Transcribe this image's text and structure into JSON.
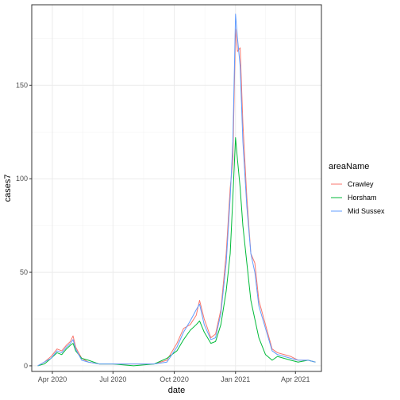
{
  "chart_data": {
    "type": "line",
    "xlabel": "date",
    "ylabel": "cases7",
    "x_range": [
      "2020-03-01",
      "2021-05-10"
    ],
    "y_range": [
      -3,
      193
    ],
    "x_ticks": [
      {
        "date": "2020-04-01",
        "label": "Apr 2020"
      },
      {
        "date": "2020-07-01",
        "label": "Jul 2020"
      },
      {
        "date": "2020-10-01",
        "label": "Oct 2020"
      },
      {
        "date": "2021-01-01",
        "label": "Jan 2021"
      },
      {
        "date": "2021-04-01",
        "label": "Apr 2021"
      }
    ],
    "y_ticks": [
      0,
      50,
      100,
      150
    ],
    "grid": true,
    "legend": {
      "title": "areaName",
      "placement": "right",
      "entries": [
        "Crawley",
        "Horsham",
        "Mid Sussex"
      ]
    },
    "series": [
      {
        "name": "Crawley",
        "color": "#F8766D",
        "points": [
          [
            "2020-03-10",
            0
          ],
          [
            "2020-03-20",
            2
          ],
          [
            "2020-03-30",
            5
          ],
          [
            "2020-04-08",
            9
          ],
          [
            "2020-04-15",
            8
          ],
          [
            "2020-04-22",
            11
          ],
          [
            "2020-04-28",
            13
          ],
          [
            "2020-05-02",
            16
          ],
          [
            "2020-05-06",
            10
          ],
          [
            "2020-05-15",
            4
          ],
          [
            "2020-05-25",
            2
          ],
          [
            "2020-06-10",
            1
          ],
          [
            "2020-07-01",
            1
          ],
          [
            "2020-08-01",
            1
          ],
          [
            "2020-09-01",
            1
          ],
          [
            "2020-09-20",
            3
          ],
          [
            "2020-10-05",
            12
          ],
          [
            "2020-10-15",
            20
          ],
          [
            "2020-10-25",
            22
          ],
          [
            "2020-11-03",
            27
          ],
          [
            "2020-11-08",
            35
          ],
          [
            "2020-11-15",
            25
          ],
          [
            "2020-11-25",
            15
          ],
          [
            "2020-12-02",
            17
          ],
          [
            "2020-12-10",
            30
          ],
          [
            "2020-12-18",
            60
          ],
          [
            "2020-12-24",
            95
          ],
          [
            "2020-12-28",
            110
          ],
          [
            "2021-01-01",
            180
          ],
          [
            "2021-01-04",
            168
          ],
          [
            "2021-01-08",
            170
          ],
          [
            "2021-01-12",
            130
          ],
          [
            "2021-01-18",
            90
          ],
          [
            "2021-01-24",
            60
          ],
          [
            "2021-01-30",
            55
          ],
          [
            "2021-02-05",
            35
          ],
          [
            "2021-02-15",
            22
          ],
          [
            "2021-02-25",
            9
          ],
          [
            "2021-03-05",
            7
          ],
          [
            "2021-03-15",
            6
          ],
          [
            "2021-03-25",
            5
          ],
          [
            "2021-04-05",
            3
          ],
          [
            "2021-04-20",
            3
          ],
          [
            "2021-05-01",
            2
          ]
        ]
      },
      {
        "name": "Horsham",
        "color": "#00BA38",
        "points": [
          [
            "2020-03-10",
            0
          ],
          [
            "2020-03-20",
            1
          ],
          [
            "2020-03-30",
            4
          ],
          [
            "2020-04-08",
            7
          ],
          [
            "2020-04-15",
            6
          ],
          [
            "2020-04-22",
            9
          ],
          [
            "2020-04-28",
            11
          ],
          [
            "2020-05-02",
            12
          ],
          [
            "2020-05-06",
            8
          ],
          [
            "2020-05-15",
            4
          ],
          [
            "2020-05-25",
            3
          ],
          [
            "2020-06-10",
            1
          ],
          [
            "2020-07-01",
            1
          ],
          [
            "2020-08-01",
            0
          ],
          [
            "2020-09-01",
            1
          ],
          [
            "2020-09-20",
            4
          ],
          [
            "2020-10-05",
            8
          ],
          [
            "2020-10-15",
            14
          ],
          [
            "2020-10-25",
            19
          ],
          [
            "2020-11-03",
            22
          ],
          [
            "2020-11-08",
            24
          ],
          [
            "2020-11-15",
            18
          ],
          [
            "2020-11-25",
            12
          ],
          [
            "2020-12-02",
            13
          ],
          [
            "2020-12-10",
            22
          ],
          [
            "2020-12-18",
            40
          ],
          [
            "2020-12-24",
            60
          ],
          [
            "2020-12-28",
            90
          ],
          [
            "2021-01-01",
            122
          ],
          [
            "2021-01-04",
            110
          ],
          [
            "2021-01-08",
            95
          ],
          [
            "2021-01-12",
            75
          ],
          [
            "2021-01-18",
            55
          ],
          [
            "2021-01-24",
            35
          ],
          [
            "2021-01-30",
            25
          ],
          [
            "2021-02-05",
            15
          ],
          [
            "2021-02-15",
            6
          ],
          [
            "2021-02-25",
            3
          ],
          [
            "2021-03-05",
            5
          ],
          [
            "2021-03-15",
            4
          ],
          [
            "2021-03-25",
            3
          ],
          [
            "2021-04-05",
            2
          ],
          [
            "2021-04-20",
            3
          ],
          [
            "2021-05-01",
            2
          ]
        ]
      },
      {
        "name": "Mid Sussex",
        "color": "#619CFF",
        "points": [
          [
            "2020-03-10",
            0
          ],
          [
            "2020-03-20",
            2
          ],
          [
            "2020-03-30",
            4
          ],
          [
            "2020-04-08",
            8
          ],
          [
            "2020-04-15",
            7
          ],
          [
            "2020-04-22",
            10
          ],
          [
            "2020-04-28",
            12
          ],
          [
            "2020-05-02",
            14
          ],
          [
            "2020-05-06",
            9
          ],
          [
            "2020-05-15",
            3
          ],
          [
            "2020-05-25",
            2
          ],
          [
            "2020-06-10",
            1
          ],
          [
            "2020-07-01",
            1
          ],
          [
            "2020-08-01",
            1
          ],
          [
            "2020-09-01",
            1
          ],
          [
            "2020-09-20",
            2
          ],
          [
            "2020-10-05",
            10
          ],
          [
            "2020-10-15",
            18
          ],
          [
            "2020-10-25",
            24
          ],
          [
            "2020-11-03",
            30
          ],
          [
            "2020-11-08",
            33
          ],
          [
            "2020-11-15",
            22
          ],
          [
            "2020-11-25",
            14
          ],
          [
            "2020-12-02",
            15
          ],
          [
            "2020-12-10",
            28
          ],
          [
            "2020-12-18",
            55
          ],
          [
            "2020-12-24",
            90
          ],
          [
            "2020-12-28",
            120
          ],
          [
            "2021-01-01",
            188
          ],
          [
            "2021-01-04",
            175
          ],
          [
            "2021-01-08",
            160
          ],
          [
            "2021-01-12",
            120
          ],
          [
            "2021-01-18",
            85
          ],
          [
            "2021-01-24",
            60
          ],
          [
            "2021-01-30",
            50
          ],
          [
            "2021-02-05",
            32
          ],
          [
            "2021-02-15",
            20
          ],
          [
            "2021-02-25",
            8
          ],
          [
            "2021-03-05",
            6
          ],
          [
            "2021-03-15",
            5
          ],
          [
            "2021-03-25",
            4
          ],
          [
            "2021-04-05",
            3
          ],
          [
            "2021-04-20",
            3
          ],
          [
            "2021-05-01",
            2
          ]
        ]
      }
    ]
  }
}
